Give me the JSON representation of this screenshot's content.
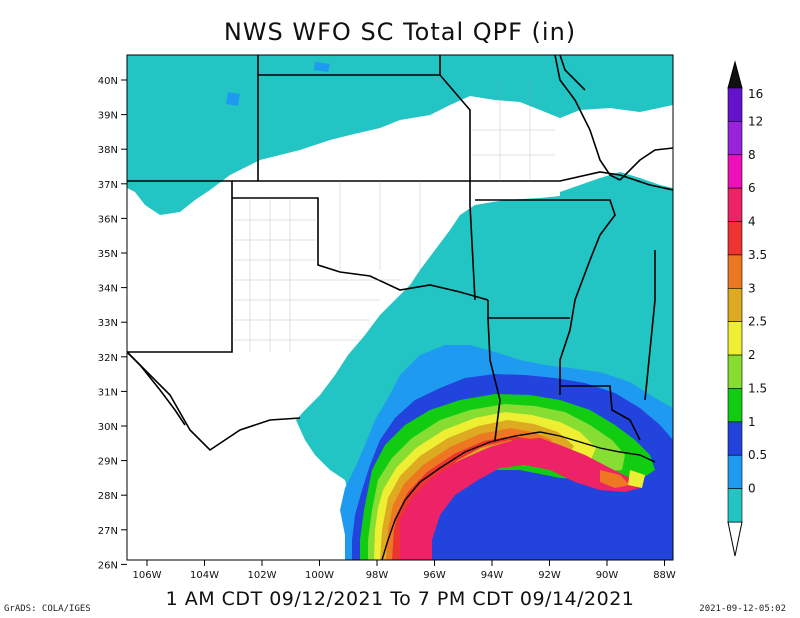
{
  "title": "NWS WFO SC Total QPF (in)",
  "subtitle": "1 AM CDT 09/12/2021 To 7 PM CDT 09/14/2021",
  "credit_left": "GrADS: COLA/IGES",
  "credit_right": "2021-09-12-05:02",
  "lat_labels": [
    "40N",
    "39N",
    "38N",
    "37N",
    "36N",
    "35N",
    "34N",
    "33N",
    "32N",
    "31N",
    "30N",
    "29N",
    "28N",
    "27N",
    "26N"
  ],
  "lon_labels": [
    "106W",
    "104W",
    "102W",
    "100W",
    "98W",
    "96W",
    "94W",
    "92W",
    "90W",
    "88W"
  ],
  "colorbar": {
    "labels": [
      "0",
      "0.5",
      "1",
      "1.5",
      "2",
      "2.5",
      "3",
      "3.5",
      "4",
      "6",
      "8",
      "12",
      "16"
    ],
    "colors": [
      "#22c4c4",
      "#1e9bf0",
      "#2244dd",
      "#11cc11",
      "#88dd33",
      "#eeee33",
      "#ddaa22",
      "#ee7722",
      "#ee3333",
      "#ee2266",
      "#ee11bb",
      "#9922dd",
      "#6611cc"
    ]
  }
}
